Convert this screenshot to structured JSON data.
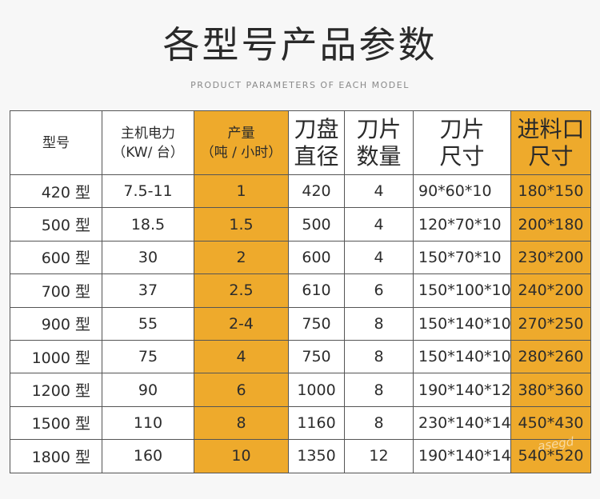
{
  "page": {
    "title": "各型号产品参数",
    "subtitle": "PRODUCT PARAMETERS OF EACH MODEL",
    "watermark": "asegd"
  },
  "colors": {
    "highlight": "#eeaa2c",
    "border": "#555555",
    "background": "#f7f7f7"
  },
  "table": {
    "headers": [
      [
        "型号"
      ],
      [
        "主机电力",
        "（KW/ 台）"
      ],
      [
        "产量",
        "（吨 / 小时）"
      ],
      [
        "刀盘",
        "直径"
      ],
      [
        "刀片",
        "数量"
      ],
      [
        "刀片",
        "尺寸"
      ],
      [
        "进料口",
        "尺寸"
      ]
    ],
    "rows": [
      [
        "420 型",
        "7.5-11",
        "1",
        "420",
        "4",
        "90*60*10",
        "180*150"
      ],
      [
        "500 型",
        "18.5",
        "1.5",
        "500",
        "4",
        "120*70*10",
        "200*180"
      ],
      [
        "600 型",
        "30",
        "2",
        "600",
        "4",
        "150*70*10",
        "230*200"
      ],
      [
        "700 型",
        "37",
        "2.5",
        "610",
        "6",
        "150*100*10",
        "240*200"
      ],
      [
        "900 型",
        "55",
        "2-4",
        "750",
        "8",
        "150*140*10",
        "270*250"
      ],
      [
        "1000 型",
        "75",
        "4",
        "750",
        "8",
        "150*140*10",
        "280*260"
      ],
      [
        "1200 型",
        "90",
        "6",
        "1000",
        "8",
        "190*140*12",
        "380*360"
      ],
      [
        "1500 型",
        "110",
        "8",
        "1160",
        "8",
        "230*140*14",
        "450*430"
      ],
      [
        "1800 型",
        "160",
        "10",
        "1350",
        "12",
        "190*140*14",
        "540*520"
      ]
    ]
  }
}
